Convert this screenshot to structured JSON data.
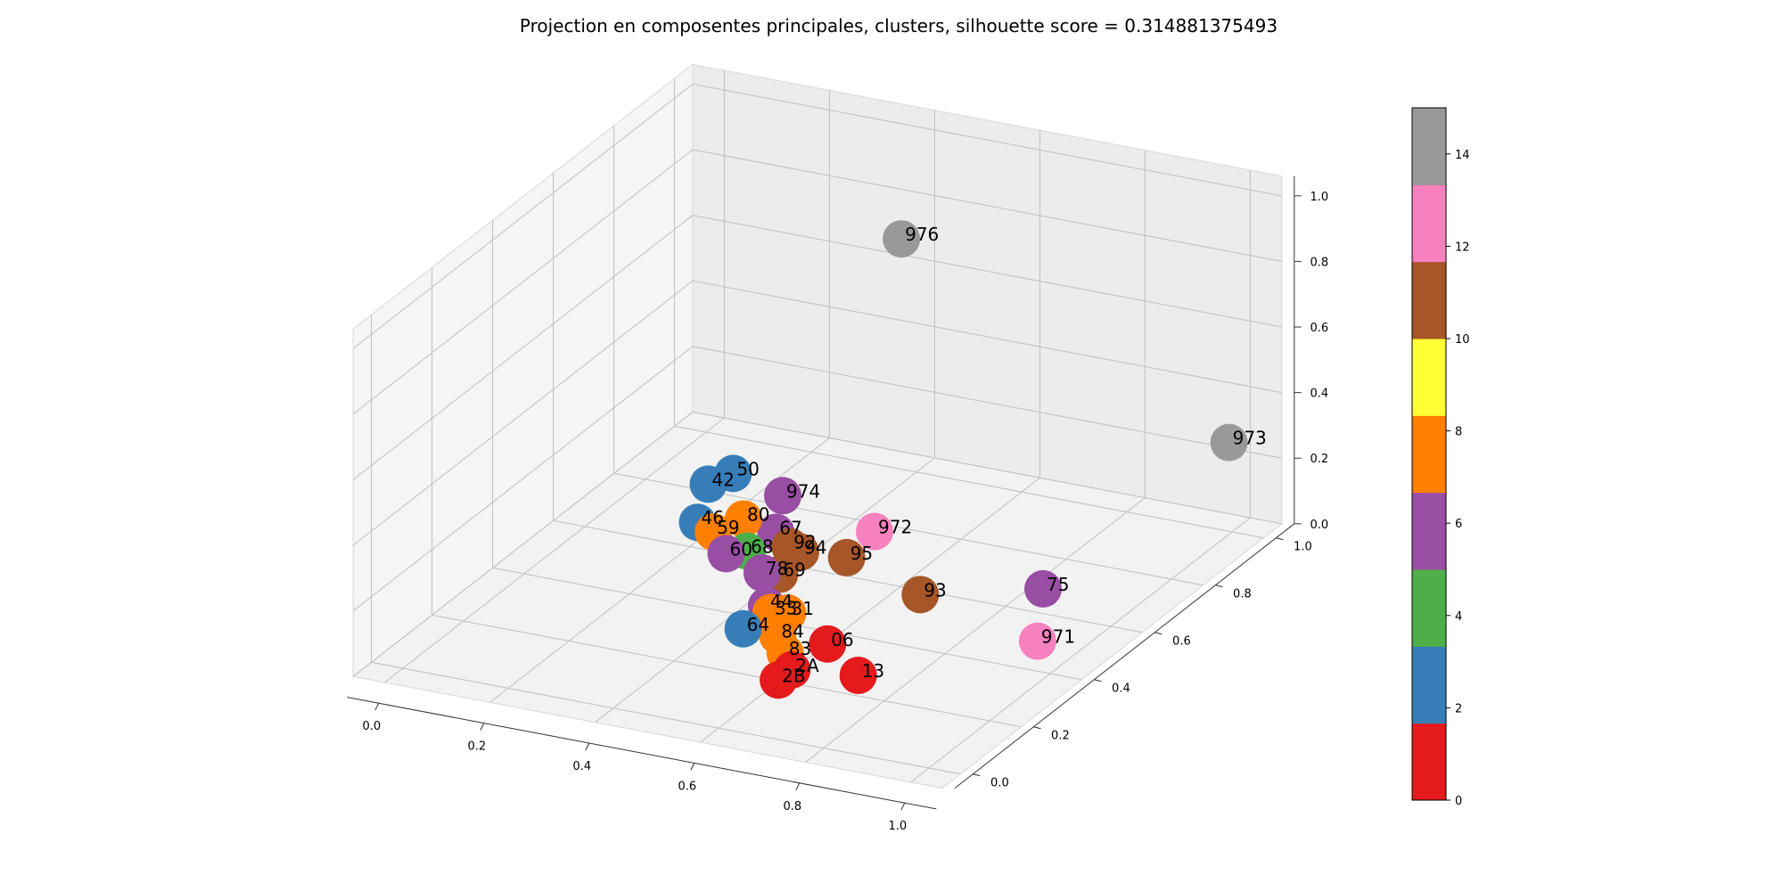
{
  "chart_data": {
    "type": "scatter3d",
    "title": "Projection en composentes principales, clusters, silhouette score = 0.314881375493",
    "x_ticks": [
      "0.0",
      "0.2",
      "0.4",
      "0.6",
      "0.8",
      "1.0"
    ],
    "y_ticks": [
      "0.0",
      "0.2",
      "0.4",
      "0.6",
      "0.8",
      "1.0"
    ],
    "z_ticks": [
      "0.0",
      "0.2",
      "0.4",
      "0.6",
      "0.8",
      "1.0"
    ],
    "xlim": [
      0,
      1
    ],
    "ylim": [
      0,
      1
    ],
    "zlim": [
      0,
      1
    ],
    "grid": true,
    "colorbar": {
      "range": [
        0,
        15
      ],
      "ticks": [
        "0",
        "2",
        "4",
        "6",
        "8",
        "10",
        "12",
        "14"
      ],
      "colors": [
        "#e41a1c",
        "#377eb8",
        "#4daf4a",
        "#984ea3",
        "#ff7f00",
        "#ffff33",
        "#a65628",
        "#f781bf",
        "#999999"
      ]
    },
    "points": [
      {
        "label": "976",
        "x": 0.55,
        "y": 0.69,
        "z": 0.98,
        "cluster": 14
      },
      {
        "label": "973",
        "x": 1.0,
        "y": 0.99,
        "z": 0.28,
        "cluster": 14
      },
      {
        "label": "75",
        "x": 0.9,
        "y": 0.55,
        "z": 0.12,
        "cluster": 6
      },
      {
        "label": "971",
        "x": 0.93,
        "y": 0.48,
        "z": 0.02,
        "cluster": 12
      },
      {
        "label": "972",
        "x": 0.62,
        "y": 0.48,
        "z": 0.26,
        "cluster": 12
      },
      {
        "label": "93",
        "x": 0.73,
        "y": 0.44,
        "z": 0.13,
        "cluster": 10
      },
      {
        "label": "95",
        "x": 0.59,
        "y": 0.44,
        "z": 0.2,
        "cluster": 10
      },
      {
        "label": "94",
        "x": 0.56,
        "y": 0.34,
        "z": 0.28,
        "cluster": 10
      },
      {
        "label": "92",
        "x": 0.54,
        "y": 0.34,
        "z": 0.29,
        "cluster": 10
      },
      {
        "label": "974",
        "x": 0.48,
        "y": 0.42,
        "z": 0.37,
        "cluster": 6
      },
      {
        "label": "69",
        "x": 0.52,
        "y": 0.34,
        "z": 0.2,
        "cluster": 10
      },
      {
        "label": "06",
        "x": 0.64,
        "y": 0.29,
        "z": 0.06,
        "cluster": 0
      },
      {
        "label": "13",
        "x": 0.71,
        "y": 0.27,
        "z": 0.0,
        "cluster": 0
      },
      {
        "label": "2B",
        "x": 0.61,
        "y": 0.18,
        "z": 0.02,
        "cluster": 0
      },
      {
        "label": "2A",
        "x": 0.63,
        "y": 0.19,
        "z": 0.05,
        "cluster": 0
      },
      {
        "label": "83",
        "x": 0.6,
        "y": 0.22,
        "z": 0.07,
        "cluster": 8
      },
      {
        "label": "84",
        "x": 0.58,
        "y": 0.23,
        "z": 0.11,
        "cluster": 8
      },
      {
        "label": "64",
        "x": 0.52,
        "y": 0.22,
        "z": 0.12,
        "cluster": 2
      },
      {
        "label": "31",
        "x": 0.57,
        "y": 0.28,
        "z": 0.14,
        "cluster": 8
      },
      {
        "label": "33",
        "x": 0.55,
        "y": 0.26,
        "z": 0.15,
        "cluster": 8
      },
      {
        "label": "44",
        "x": 0.53,
        "y": 0.28,
        "z": 0.15,
        "cluster": 6
      },
      {
        "label": "78",
        "x": 0.51,
        "y": 0.3,
        "z": 0.23,
        "cluster": 6
      },
      {
        "label": "68",
        "x": 0.47,
        "y": 0.32,
        "z": 0.27,
        "cluster": 4
      },
      {
        "label": "46",
        "x": 0.37,
        "y": 0.33,
        "z": 0.32,
        "cluster": 2
      },
      {
        "label": "50",
        "x": 0.38,
        "y": 0.43,
        "z": 0.4,
        "cluster": 2
      },
      {
        "label": "42",
        "x": 0.35,
        "y": 0.4,
        "z": 0.38,
        "cluster": 2
      },
      {
        "label": "59",
        "x": 0.4,
        "y": 0.33,
        "z": 0.3,
        "cluster": 8
      },
      {
        "label": "80",
        "x": 0.44,
        "y": 0.36,
        "z": 0.33,
        "cluster": 8
      },
      {
        "label": "60",
        "x": 0.43,
        "y": 0.32,
        "z": 0.25,
        "cluster": 6
      },
      {
        "label": "67",
        "x": 0.49,
        "y": 0.38,
        "z": 0.29,
        "cluster": 6
      }
    ]
  }
}
